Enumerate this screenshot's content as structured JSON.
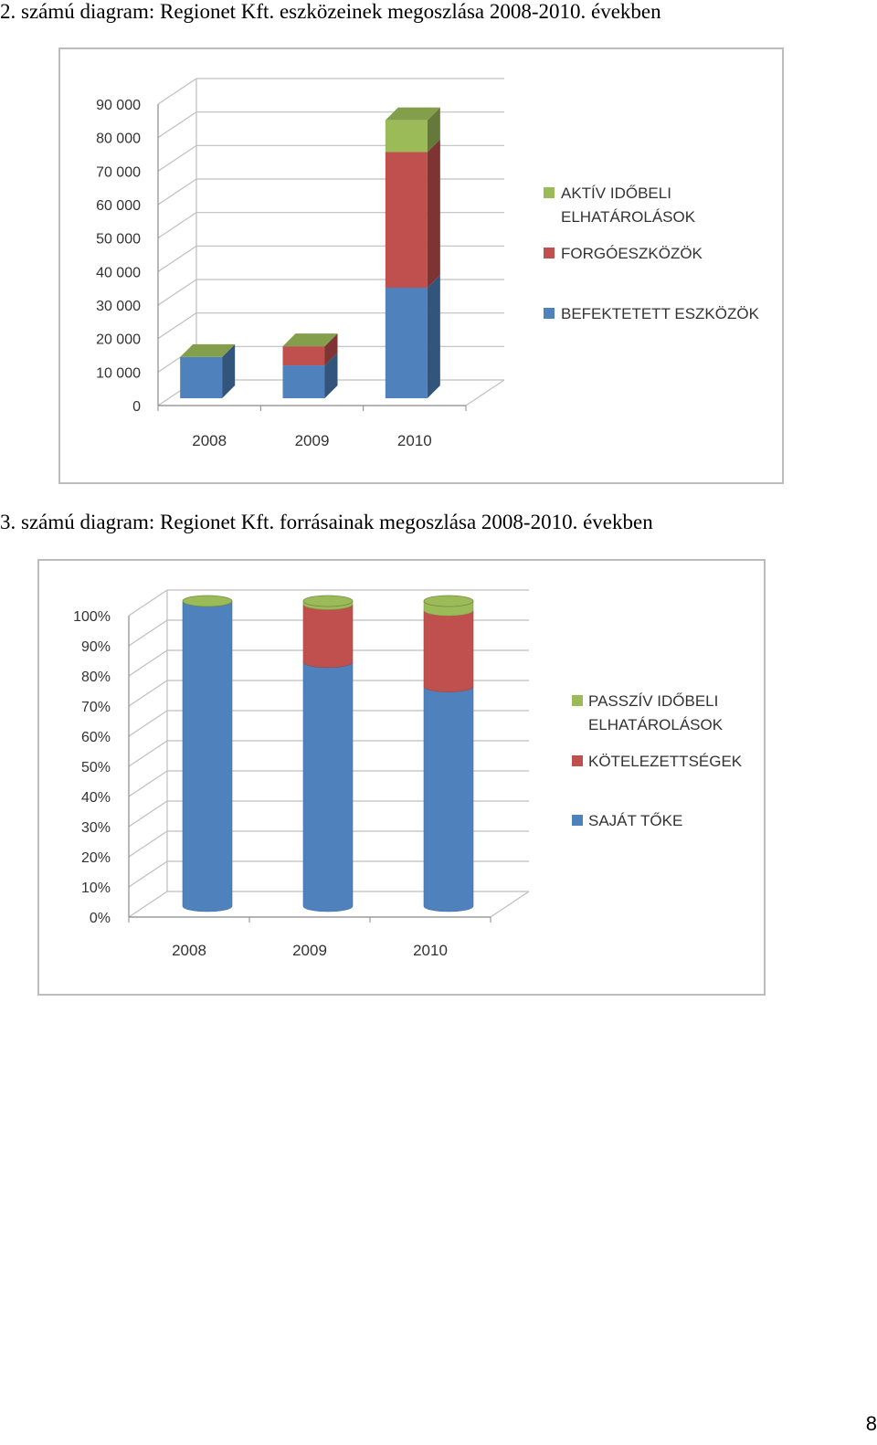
{
  "captions": {
    "chart1": "2.  számú diagram: Regionet Kft. eszközeinek megoszlása 2008-2010. években",
    "chart2": "3.  számú diagram: Regionet Kft. forrásainak megoszlása 2008-2010. években"
  },
  "page_number": "8",
  "colors": {
    "blue": "#4f81bd",
    "red": "#c0504d",
    "green": "#9bbb59",
    "grid": "#bfbfbf"
  },
  "chart_data": [
    {
      "type": "bar",
      "stacked": true,
      "style": "3d-column",
      "title": "",
      "categories": [
        "2008",
        "2009",
        "2010"
      ],
      "series": [
        {
          "name": "BEFEKTETETT ESZKÖZÖK",
          "color": "#4f81bd",
          "values": [
            12300,
            9800,
            33000
          ]
        },
        {
          "name": "FORGÓESZKÖZÖK",
          "color": "#c0504d",
          "values": [
            0,
            5700,
            40500
          ]
        },
        {
          "name": "AKTÍV IDŐBELI ELHATÁROLÁSOK",
          "color": "#9bbb59",
          "values": [
            0,
            0,
            9500
          ]
        }
      ],
      "legend": [
        "AKTÍV IDŐBELI",
        "ELHATÁROLÁSOK",
        "FORGÓESZKÖZÖK",
        "BEFEKTETETT ESZKÖZÖK"
      ],
      "ylim": [
        0,
        90000
      ],
      "yticks": [
        "0",
        "10 000",
        "20 000",
        "30 000",
        "40 000",
        "50 000",
        "60 000",
        "70 000",
        "80 000",
        "90 000"
      ],
      "legend_position": "right",
      "grid": true
    },
    {
      "type": "bar",
      "stacked": true,
      "style": "3d-cylinder",
      "title": "",
      "categories": [
        "2008",
        "2009",
        "2010"
      ],
      "series": [
        {
          "name": "SAJÁT TŐKE",
          "color": "#4f81bd",
          "values": [
            100,
            80,
            72
          ]
        },
        {
          "name": "KÖTELEZETTSÉGEK",
          "color": "#c0504d",
          "values": [
            0,
            19,
            25
          ]
        },
        {
          "name": "PASSZÍV IDŐBELI ELHATÁROLÁSOK",
          "color": "#9bbb59",
          "values": [
            0,
            1,
            3
          ]
        }
      ],
      "legend": [
        "PASSZÍV IDŐBELI",
        "ELHATÁROLÁSOK",
        "KÖTELEZETTSÉGEK",
        "SAJÁT TŐKE"
      ],
      "ylim": [
        0,
        100
      ],
      "yticks": [
        "0%",
        "10%",
        "20%",
        "30%",
        "40%",
        "50%",
        "60%",
        "70%",
        "80%",
        "90%",
        "100%"
      ],
      "legend_position": "right",
      "grid": true
    }
  ]
}
